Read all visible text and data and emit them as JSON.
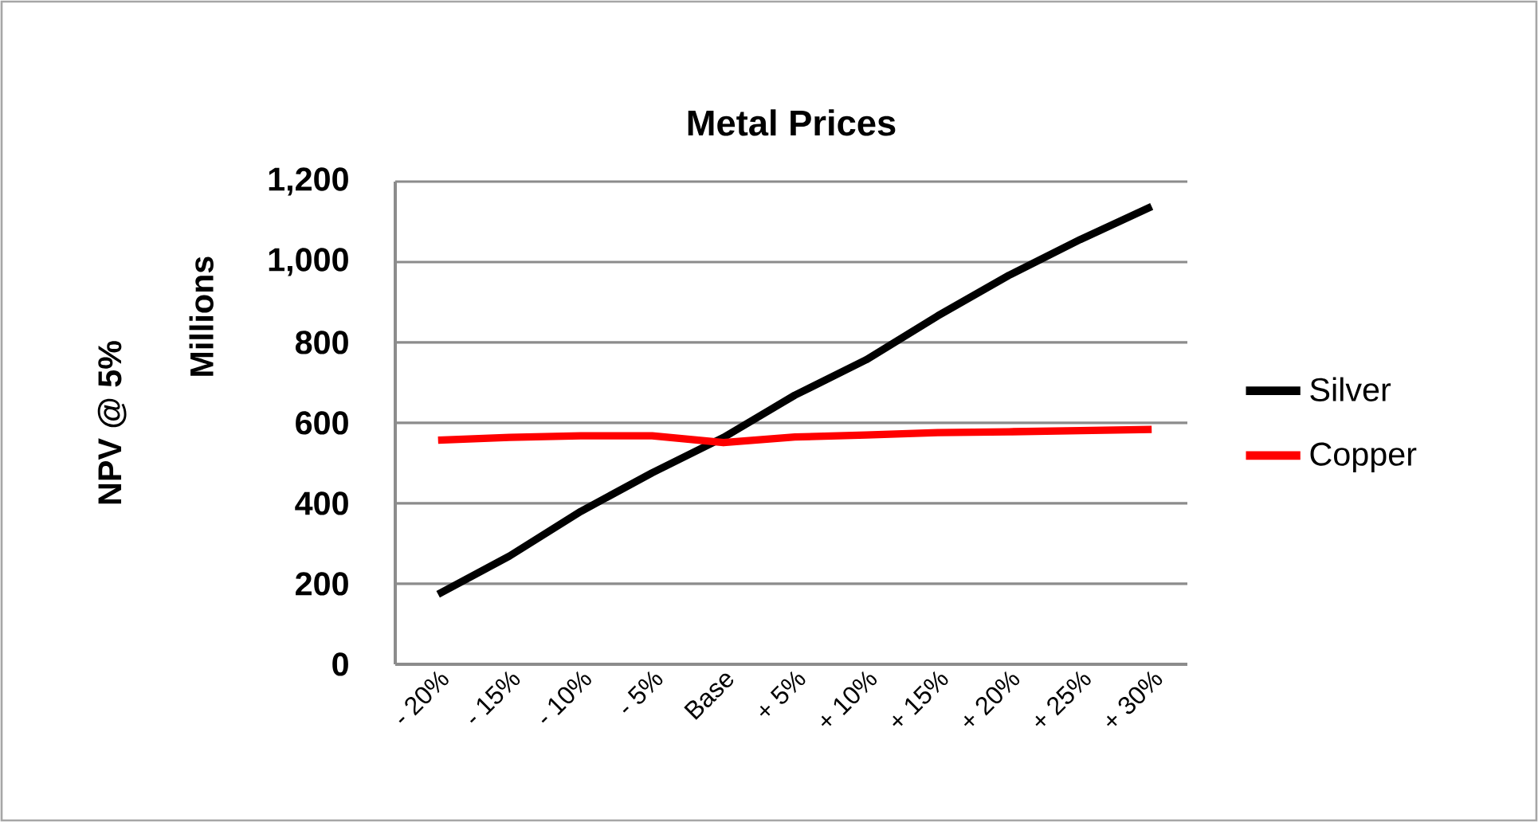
{
  "chart_data": {
    "type": "line",
    "title": "Metal Prices",
    "ylabel": "NPV @ 5%",
    "annotations": [
      "Millions"
    ],
    "categories": [
      "- 20%",
      "- 15%",
      "- 10%",
      "- 5%",
      "Base",
      "+ 5%",
      "+ 10%",
      "+ 15%",
      "+ 20%",
      "+ 25%",
      "+ 30%"
    ],
    "series": [
      {
        "name": "Silver",
        "color": "#000000",
        "values": [
          174,
          269,
          380,
          476,
          564,
          669,
          757,
          866,
          967,
          1056,
          1138
        ]
      },
      {
        "name": "Copper",
        "color": "#ff0000",
        "values": [
          557,
          564,
          568,
          568,
          551,
          565,
          570,
          576,
          578,
          581,
          584
        ]
      }
    ],
    "ylim": [
      0,
      1200
    ],
    "yticks": [
      0,
      200,
      400,
      600,
      800,
      {
        "value": 1000,
        "label": "1,000"
      },
      {
        "value": 1200,
        "label": "1,200"
      }
    ],
    "grid": "y",
    "legend": "right"
  }
}
